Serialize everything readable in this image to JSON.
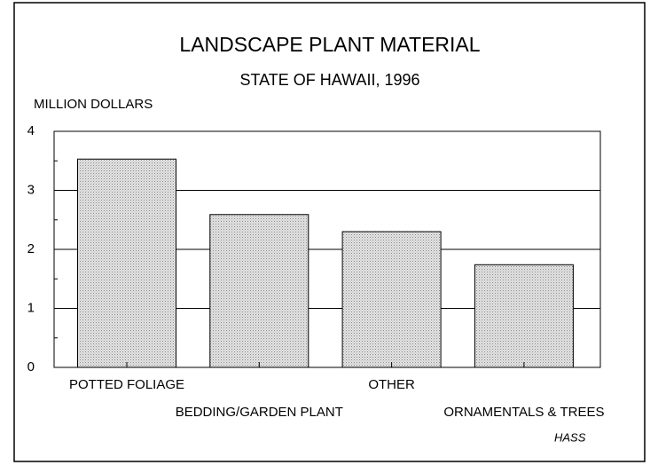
{
  "chart_data": {
    "type": "bar",
    "title": "LANDSCAPE PLANT MATERIAL",
    "subtitle": "STATE OF HAWAII, 1996",
    "y_label": "MILLION DOLLARS",
    "source": "HASS",
    "categories": [
      "POTTED FOLIAGE",
      "BEDDING/GARDEN PLANT",
      "OTHER",
      "ORNAMENTALS & TREES"
    ],
    "values": [
      3.53,
      2.59,
      2.3,
      1.74
    ],
    "color": "#d6d6d6",
    "ylim": [
      0,
      4
    ],
    "yticks": [
      0,
      1,
      2,
      3,
      4
    ],
    "minor_yticks": [
      0.5,
      1.5,
      2.5,
      3.5
    ],
    "grid": true
  }
}
